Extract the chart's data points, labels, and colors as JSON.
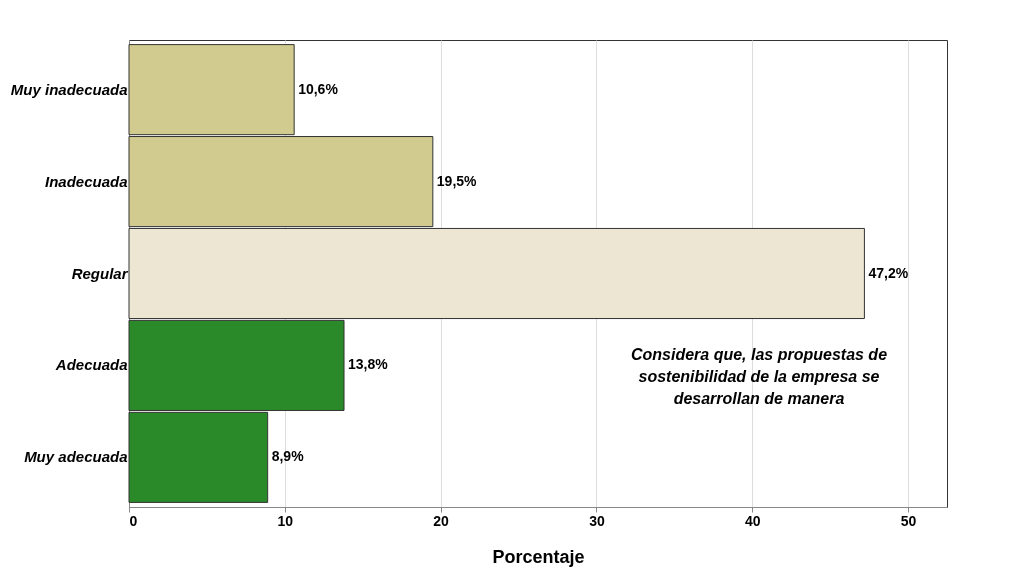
{
  "chart_data": {
    "type": "bar",
    "orientation": "horizontal",
    "categories": [
      "Muy inadecuada",
      "Inadecuada",
      "Regular",
      "Adecuada",
      "Muy adecuada"
    ],
    "values": [
      10.6,
      19.5,
      47.2,
      13.8,
      8.9
    ],
    "colors": [
      "#d2cb8f",
      "#d2cb8f",
      "#ece6d2",
      "#2a8a2a",
      "#2a8a2a"
    ],
    "value_labels": [
      "10,6%",
      "19,5%",
      "47,2%",
      "13,8%",
      "8,9%"
    ],
    "xlim": [
      0,
      52.5
    ],
    "xticks": [
      0,
      10,
      20,
      30,
      40,
      50
    ],
    "grid": "x",
    "xlabel": "Porcentaje",
    "annotations": [
      "Considera que, las propuestas de sostenibilidad de la empresa se desarrollan de manera"
    ]
  }
}
